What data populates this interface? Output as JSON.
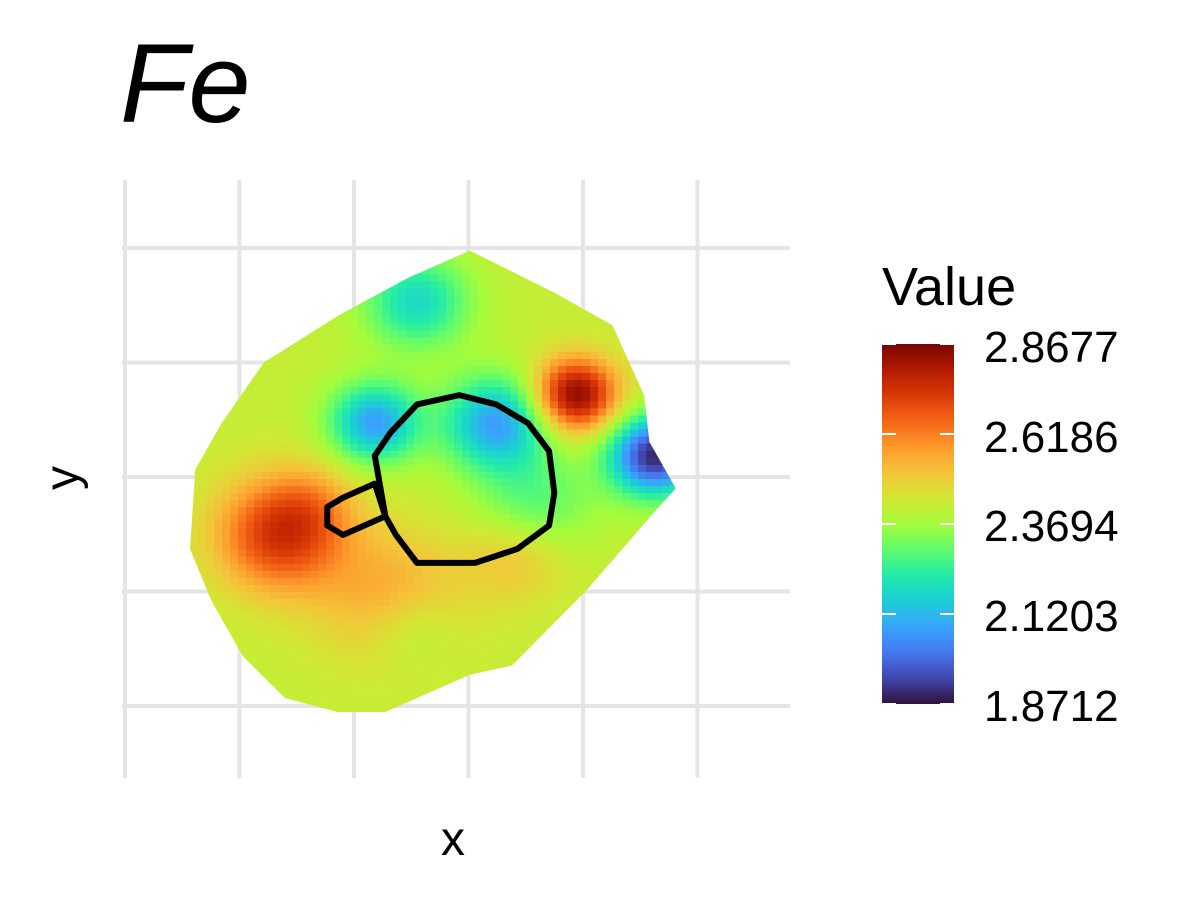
{
  "chart_data": {
    "type": "heatmap",
    "title": "Fe",
    "xlabel": "x",
    "ylabel": "y",
    "grid": true,
    "legend": {
      "title": "Value",
      "placement": "right",
      "min": 1.8712,
      "max": 2.8677,
      "ticks": [
        {
          "value": 2.8677,
          "label": "2.8677"
        },
        {
          "value": 2.6186,
          "label": "2.6186"
        },
        {
          "value": 2.3694,
          "label": "2.3694"
        },
        {
          "value": 2.1203,
          "label": "2.1203"
        },
        {
          "value": 1.8712,
          "label": "1.8712"
        }
      ]
    },
    "colormap": "turbo",
    "colors": [
      "#30123b",
      "#4145ab",
      "#4675ed",
      "#39a2fc",
      "#1bcfd4",
      "#24eca6",
      "#61fc6c",
      "#a4fc3b",
      "#d1e834",
      "#f3c63a",
      "#fe9b2d",
      "#f36315",
      "#d93806",
      "#b11901",
      "#7a0403"
    ],
    "field": {
      "base": 2.42,
      "features": [
        {
          "cx": 0.58,
          "cy": 0.62,
          "amp": -0.34,
          "sigma": 0.07,
          "desc": "low"
        },
        {
          "cx": 0.35,
          "cy": 0.62,
          "amp": -0.34,
          "sigma": 0.06,
          "desc": "low"
        },
        {
          "cx": 0.43,
          "cy": 0.88,
          "amp": -0.24,
          "sigma": 0.07,
          "desc": "low"
        },
        {
          "cx": 0.65,
          "cy": 0.44,
          "amp": -0.15,
          "sigma": 0.08,
          "desc": "low"
        },
        {
          "cx": 0.42,
          "cy": 0.18,
          "amp": -0.08,
          "sigma": 0.06,
          "desc": "low"
        },
        {
          "cx": 0.88,
          "cy": 0.55,
          "amp": -0.52,
          "sigma": 0.06,
          "desc": "min"
        },
        {
          "cx": 0.73,
          "cy": 0.68,
          "amp": 0.44,
          "sigma": 0.055,
          "desc": "max"
        },
        {
          "cx": 0.17,
          "cy": 0.38,
          "amp": 0.31,
          "sigma": 0.085,
          "desc": "high"
        },
        {
          "cx": 0.38,
          "cy": 0.25,
          "amp": 0.14,
          "sigma": 0.1,
          "desc": "high"
        },
        {
          "cx": 0.62,
          "cy": 0.34,
          "amp": 0.12,
          "sigma": 0.07,
          "desc": "high"
        },
        {
          "cx": 0.23,
          "cy": 0.45,
          "amp": 0.08,
          "sigma": 0.06,
          "desc": "high"
        }
      ],
      "domain": [
        [
          0.53,
          0.99
        ],
        [
          0.69,
          0.9
        ],
        [
          0.8,
          0.83
        ],
        [
          0.86,
          0.68
        ],
        [
          0.87,
          0.58
        ],
        [
          0.92,
          0.48
        ],
        [
          0.88,
          0.43
        ],
        [
          0.75,
          0.26
        ],
        [
          0.61,
          0.1
        ],
        [
          0.53,
          0.08
        ],
        [
          0.37,
          0.0
        ],
        [
          0.28,
          0.0
        ],
        [
          0.18,
          0.03
        ],
        [
          0.1,
          0.12
        ],
        [
          0.04,
          0.24
        ],
        [
          0.0,
          0.35
        ],
        [
          0.01,
          0.52
        ],
        [
          0.06,
          0.62
        ],
        [
          0.14,
          0.75
        ],
        [
          0.28,
          0.85
        ],
        [
          0.41,
          0.93
        ]
      ]
    },
    "overlay": {
      "main_region": [
        [
          0.35,
          0.55
        ],
        [
          0.38,
          0.6
        ],
        [
          0.43,
          0.66
        ],
        [
          0.51,
          0.68
        ],
        [
          0.58,
          0.66
        ],
        [
          0.64,
          0.62
        ],
        [
          0.68,
          0.56
        ],
        [
          0.69,
          0.47
        ],
        [
          0.68,
          0.4
        ],
        [
          0.62,
          0.35
        ],
        [
          0.54,
          0.32
        ],
        [
          0.43,
          0.32
        ],
        [
          0.39,
          0.38
        ],
        [
          0.37,
          0.42
        ]
      ],
      "small_region": [
        [
          0.29,
          0.46
        ],
        [
          0.35,
          0.49
        ],
        [
          0.37,
          0.42
        ],
        [
          0.29,
          0.38
        ],
        [
          0.26,
          0.4
        ],
        [
          0.26,
          0.44
        ]
      ]
    }
  }
}
